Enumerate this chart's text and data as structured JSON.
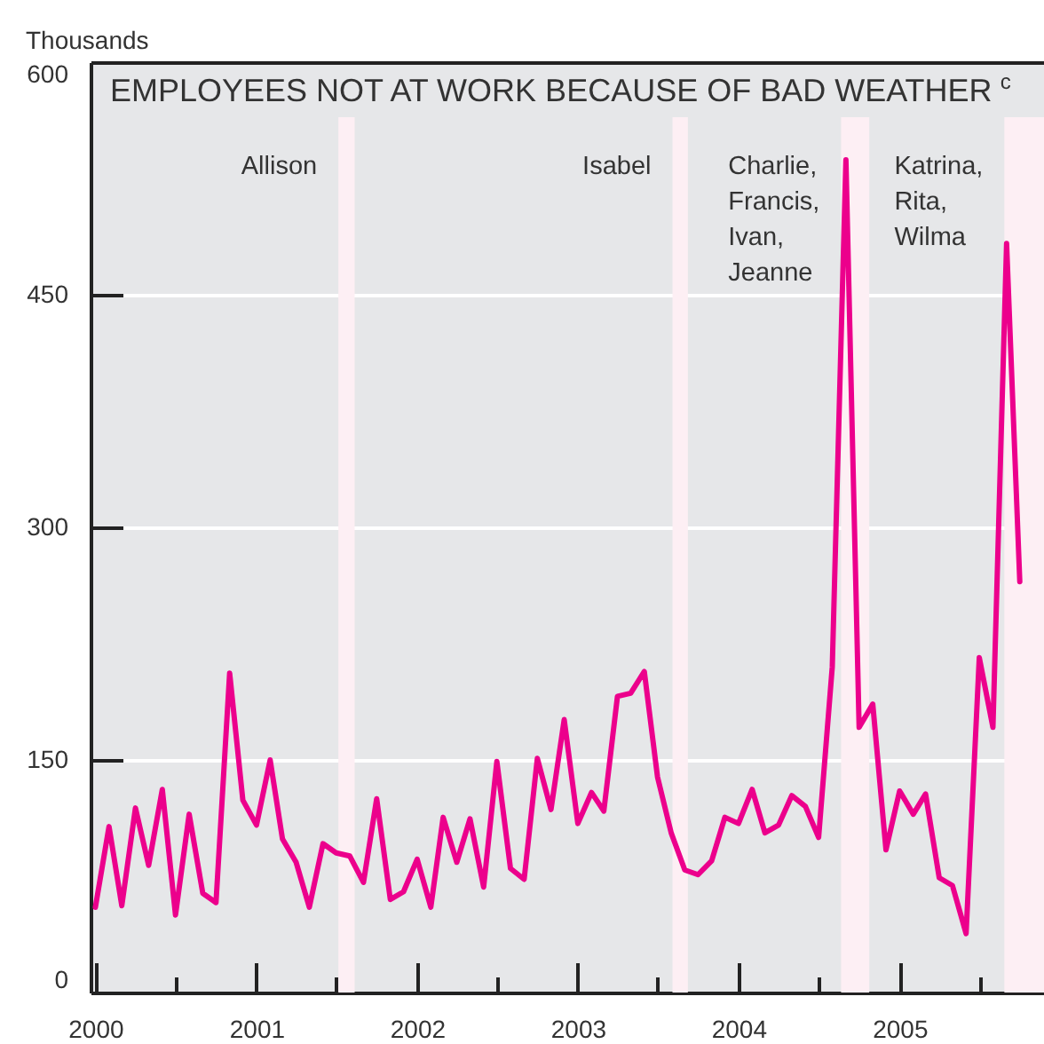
{
  "chart_data": {
    "type": "line",
    "title": "EMPLOYEES NOT AT WORK BECAUSE OF BAD WEATHER$^{c}$",
    "ylabel": "Thousands",
    "x": [
      "2000-01",
      "2000-02",
      "2000-03",
      "2000-04",
      "2000-05",
      "2000-06",
      "2000-07",
      "2000-08",
      "2000-09",
      "2000-10",
      "2000-11",
      "2000-12",
      "2001-01",
      "2001-02",
      "2001-03",
      "2001-04",
      "2001-05",
      "2001-06",
      "2001-07",
      "2001-08",
      "2001-09",
      "2001-10",
      "2001-11",
      "2001-12",
      "2002-01",
      "2002-02",
      "2002-03",
      "2002-04",
      "2002-05",
      "2002-06",
      "2002-07",
      "2002-08",
      "2002-09",
      "2002-10",
      "2002-11",
      "2002-12",
      "2003-01",
      "2003-02",
      "2003-03",
      "2003-04",
      "2003-05",
      "2003-06",
      "2003-07",
      "2003-08",
      "2003-09",
      "2003-10",
      "2003-11",
      "2003-12",
      "2004-01",
      "2004-02",
      "2004-03",
      "2004-04",
      "2004-05",
      "2004-06",
      "2004-07",
      "2004-08",
      "2004-09",
      "2004-10",
      "2004-11",
      "2004-12",
      "2005-01",
      "2005-02",
      "2005-03",
      "2005-04",
      "2005-05",
      "2005-06",
      "2005-07",
      "2005-08",
      "2005-09",
      "2005-10"
    ],
    "series": [
      {
        "color": "#ec008c",
        "values": [
          55,
          107,
          56,
          119,
          82,
          131,
          50,
          115,
          64,
          58,
          206,
          124,
          108,
          150,
          99,
          84,
          55,
          96,
          90,
          88,
          71,
          125,
          60,
          65,
          86,
          55,
          113,
          84,
          112,
          68,
          149,
          80,
          73,
          151,
          118,
          176,
          109,
          129,
          117,
          191,
          193,
          207,
          139,
          103,
          79,
          76,
          85,
          113,
          109,
          131,
          103,
          108,
          127,
          120,
          100,
          210,
          537,
          171,
          186,
          92,
          130,
          115,
          128,
          74,
          69,
          38,
          216,
          171,
          483,
          265
        ]
      }
    ],
    "xlim": [
      "1999-12-21",
      "2005-11-25"
    ],
    "xticks": [
      {
        "value": "2000-01-01",
        "label": "2000"
      },
      {
        "value": "2000-07-01",
        "label": null
      },
      {
        "value": "2001-01-01",
        "label": "2001"
      },
      {
        "value": "2001-07-01",
        "label": null
      },
      {
        "value": "2002-01-01",
        "label": "2002"
      },
      {
        "value": "2002-07-01",
        "label": null
      },
      {
        "value": "2003-01-01",
        "label": "2003"
      },
      {
        "value": "2003-07-01",
        "label": null
      },
      {
        "value": "2004-01-01",
        "label": "2004"
      },
      {
        "value": "2004-07-01",
        "label": null
      },
      {
        "value": "2005-01-01",
        "label": "2005"
      },
      {
        "value": "2005-07-01",
        "label": null
      }
    ],
    "ylim": [
      0,
      600
    ],
    "yticks": [
      0,
      150,
      300,
      450,
      600
    ],
    "grid": "y",
    "line_style": "solid",
    "bands": [
      {
        "axis": "x",
        "from": "2001-07-06",
        "to": "2001-08-12",
        "label": "Allison",
        "color": "#fdeff4"
      },
      {
        "axis": "x",
        "from": "2003-08-04",
        "to": "2003-09-08",
        "label": "Isabel",
        "color": "#fdeff4"
      },
      {
        "axis": "x",
        "from": "2004-08-21",
        "to": "2004-10-24",
        "label": "Charlie, Francis, Ivan, Jeanne",
        "color": "#fdeff4"
      },
      {
        "axis": "x",
        "from": "2005-08-27",
        "to": "2005-11-25",
        "label": "Katrina, Rita, Wilma",
        "color": "#fdeff4"
      }
    ]
  }
}
